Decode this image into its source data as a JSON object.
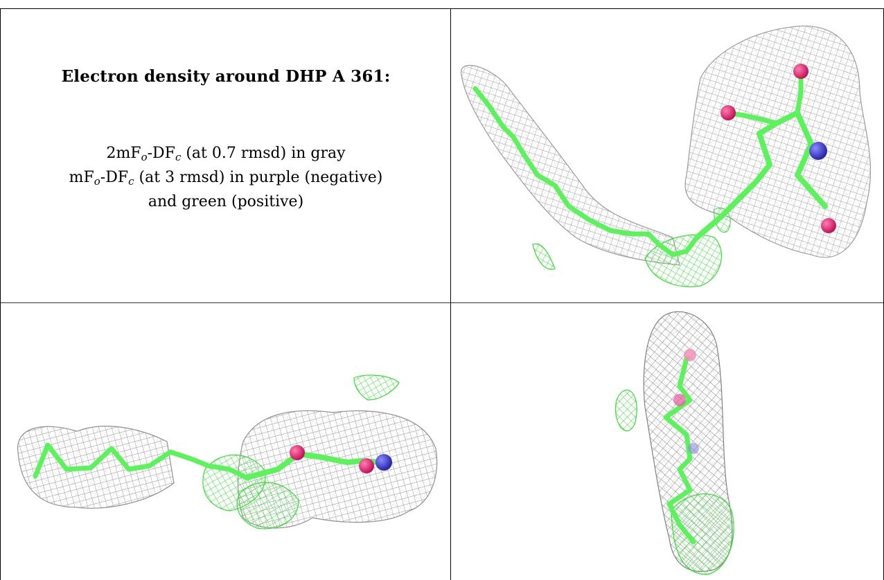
{
  "panel_title": "Electron density around DHP A 361:",
  "legend": {
    "line1": {
      "pre": "2mF",
      "s1": "o",
      "mid": "-DF",
      "s2": "c",
      "post": " (at 0.7 rmsd) in gray"
    },
    "line2": {
      "pre": "mF",
      "s1": "o",
      "mid": "-DF",
      "s2": "c",
      "post": " (at 3 rmsd) in purple (negative)"
    },
    "line3": "and green (positive)"
  },
  "colors": {
    "mesh_gray": "#a8a8a8",
    "ligand_green": "#5cf25c",
    "mesh_green": "#2fe02f",
    "oxygen": "#e8186c",
    "nitrogen": "#3b3bd6"
  },
  "views": [
    {
      "name": "view-top-right"
    },
    {
      "name": "view-bottom-left"
    },
    {
      "name": "view-bottom-right"
    }
  ]
}
